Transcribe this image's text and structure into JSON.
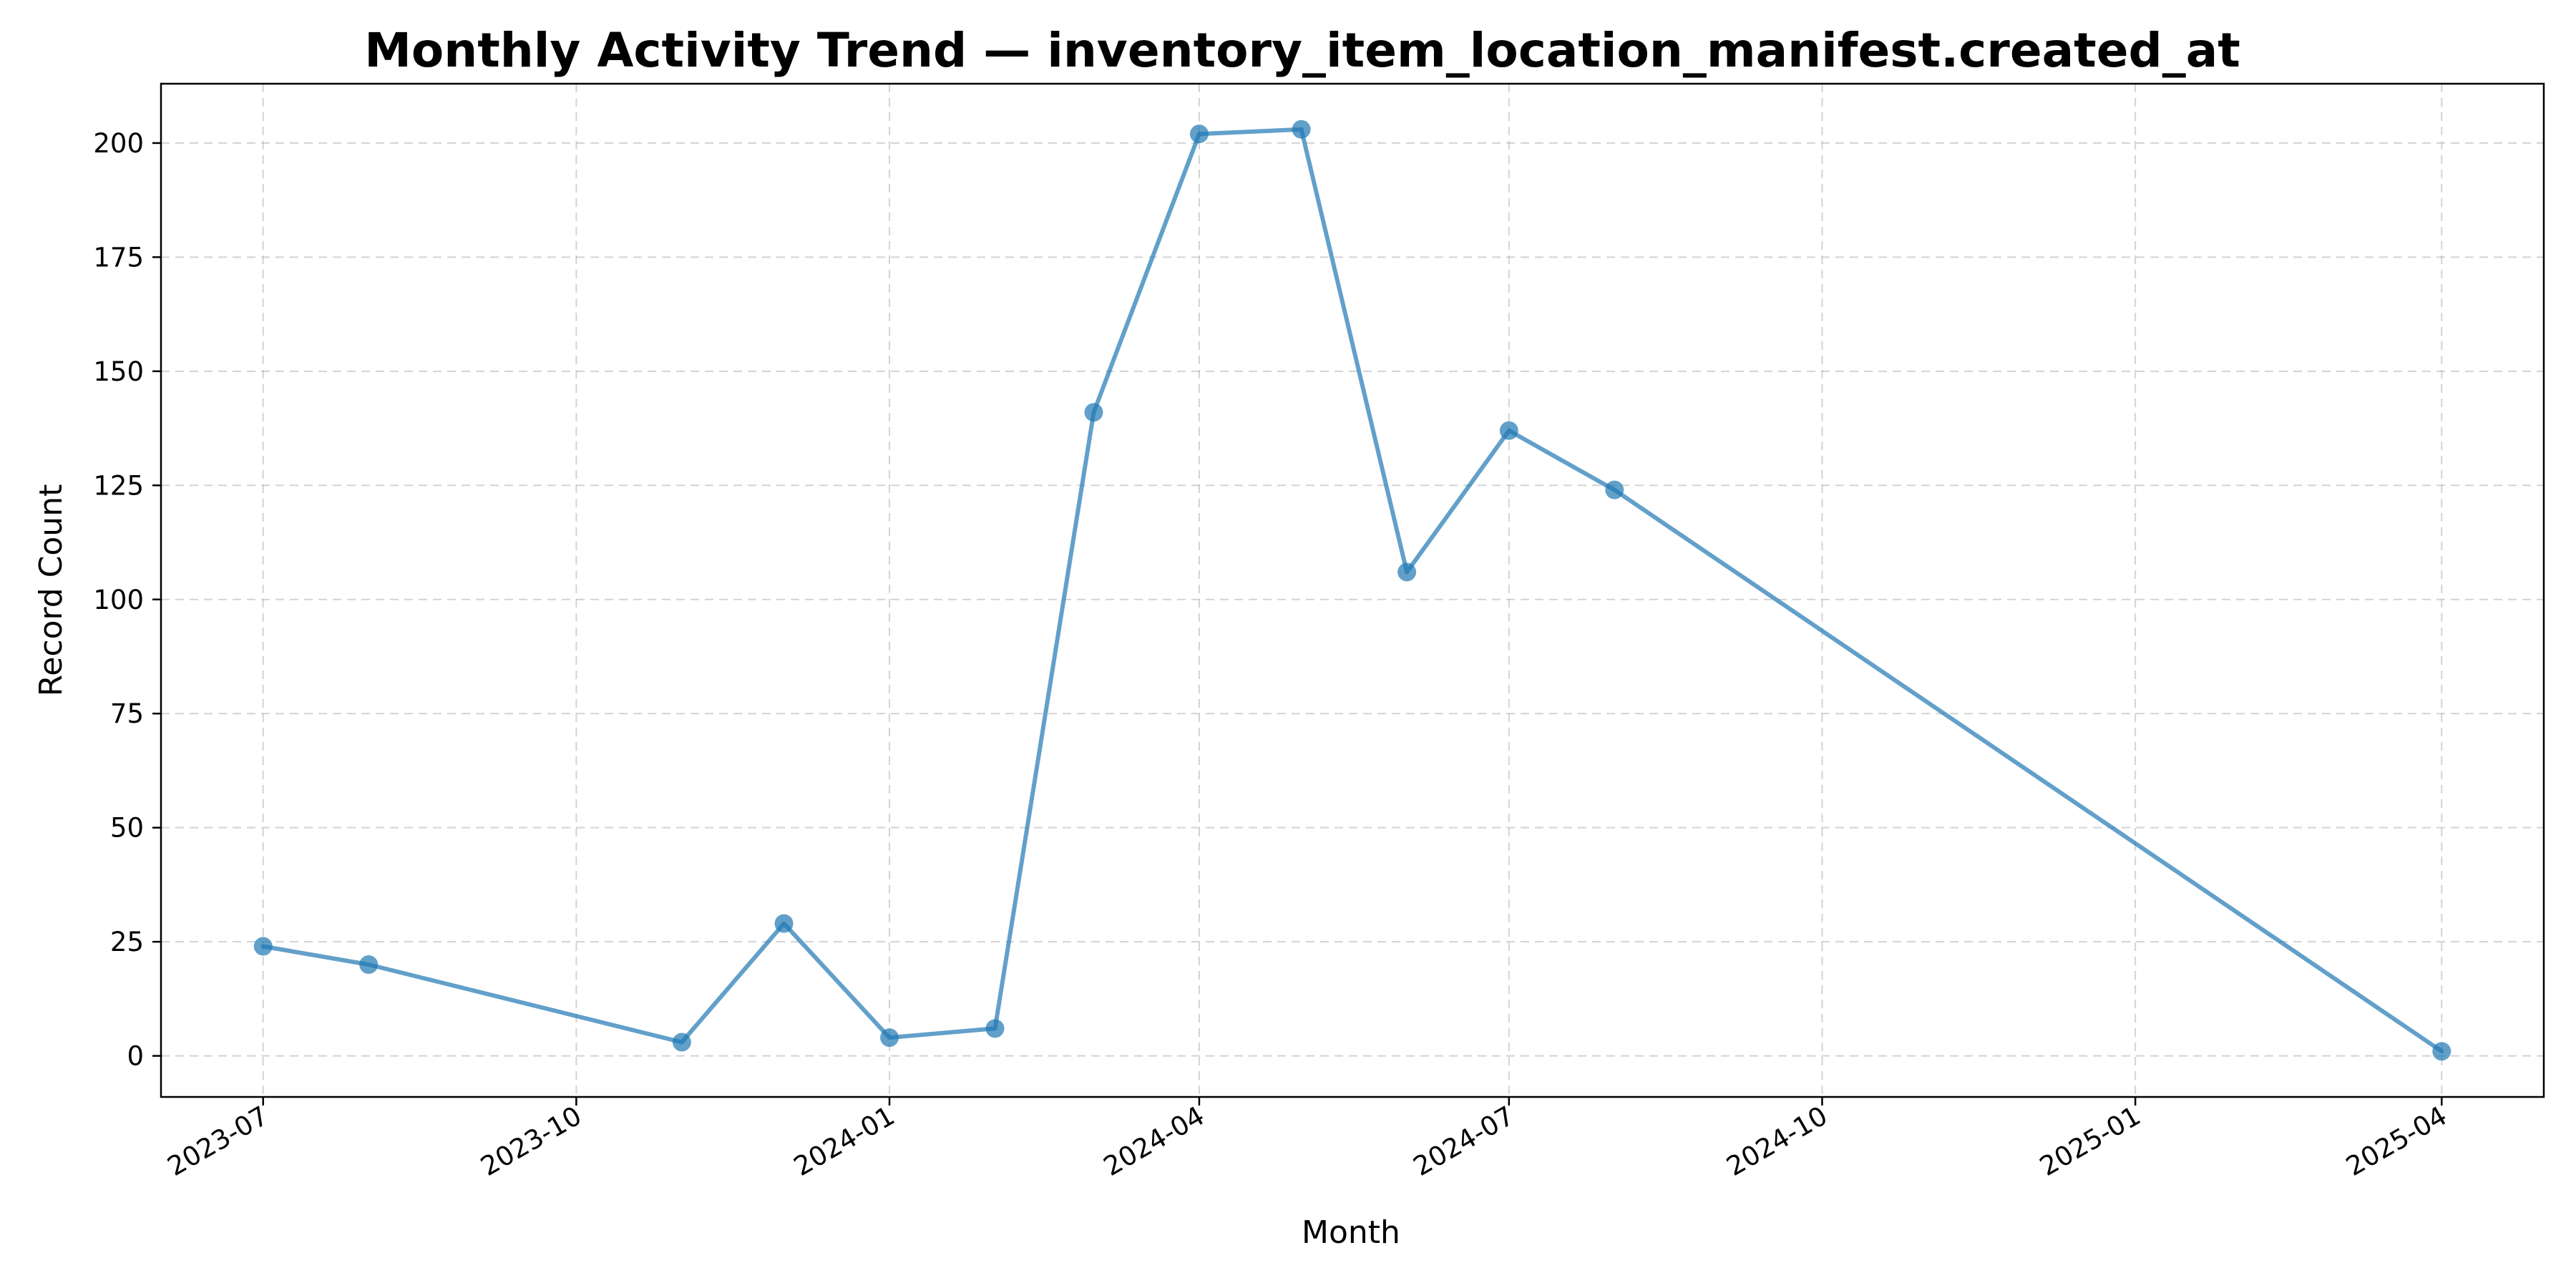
{
  "chart_data": {
    "type": "line",
    "title": "Monthly Activity Trend — inventory_item_location_manifest.created_at",
    "xlabel": "Month",
    "ylabel": "Record Count",
    "x_axis": {
      "kind": "date",
      "range": [
        "2023-06-01",
        "2025-05-01"
      ],
      "ticks": [
        "2023-07-01",
        "2023-10-01",
        "2024-01-01",
        "2024-04-01",
        "2024-07-01",
        "2024-10-01",
        "2025-01-01",
        "2025-04-01"
      ],
      "tick_labels": [
        "2023-07",
        "2023-10",
        "2024-01",
        "2024-04",
        "2024-07",
        "2024-10",
        "2025-01",
        "2025-04"
      ]
    },
    "y_axis": {
      "range": [
        -9,
        213
      ],
      "ticks": [
        0,
        25,
        50,
        75,
        100,
        125,
        150,
        175,
        200
      ],
      "tick_labels": [
        "0",
        "25",
        "50",
        "75",
        "100",
        "125",
        "150",
        "175",
        "200"
      ]
    },
    "grid": true,
    "series": [
      {
        "color": "#1f77b4",
        "points": [
          {
            "x": "2023-07-01",
            "y": 24
          },
          {
            "x": "2023-08-01",
            "y": 20
          },
          {
            "x": "2023-11-01",
            "y": 3
          },
          {
            "x": "2023-12-01",
            "y": 29
          },
          {
            "x": "2024-01-01",
            "y": 4
          },
          {
            "x": "2024-02-01",
            "y": 6
          },
          {
            "x": "2024-03-01",
            "y": 141
          },
          {
            "x": "2024-04-01",
            "y": 202
          },
          {
            "x": "2024-05-01",
            "y": 203
          },
          {
            "x": "2024-06-01",
            "y": 106
          },
          {
            "x": "2024-07-01",
            "y": 137
          },
          {
            "x": "2024-08-01",
            "y": 124
          },
          {
            "x": "2025-04-01",
            "y": 1
          }
        ]
      }
    ]
  }
}
